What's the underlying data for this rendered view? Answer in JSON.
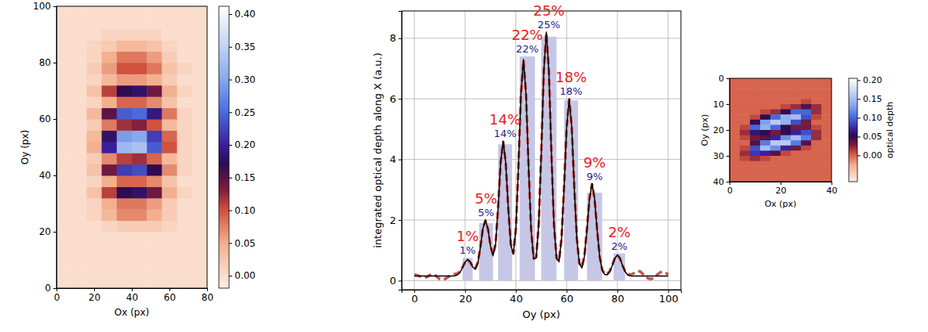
{
  "chart_data": [
    {
      "type": "heatmap",
      "xlabel": "Ox (px)",
      "ylabel": "Oy (px)",
      "xlim": [
        0,
        80
      ],
      "ylim": [
        0,
        100
      ],
      "xticks": [
        0,
        20,
        40,
        60,
        80
      ],
      "yticks": [
        0,
        20,
        40,
        60,
        80,
        100
      ],
      "x_edges": [
        0,
        8,
        16,
        24,
        32,
        40,
        48,
        56,
        64,
        72,
        80
      ],
      "y_edges": [
        0,
        4,
        8,
        12,
        16,
        20,
        24,
        28,
        32,
        36,
        40,
        44,
        48,
        52,
        56,
        60,
        64,
        68,
        72,
        76,
        80,
        84,
        88,
        92,
        96,
        100
      ],
      "cells": [
        [
          0,
          0,
          0,
          0,
          0,
          0,
          0,
          0,
          0,
          0
        ],
        [
          0,
          0,
          0,
          0,
          0,
          0,
          0,
          0,
          0,
          0
        ],
        [
          0,
          0,
          0,
          0,
          0,
          0,
          0,
          0,
          0,
          0
        ],
        [
          0,
          0,
          0,
          0,
          0,
          0,
          0,
          0,
          0,
          0
        ],
        [
          0,
          0,
          0,
          0,
          0,
          0,
          0,
          0,
          0,
          0
        ],
        [
          0,
          0,
          0,
          0.01,
          0.02,
          0.02,
          0.02,
          0.01,
          0,
          0
        ],
        [
          0,
          0,
          0.01,
          0.04,
          0.07,
          0.07,
          0.05,
          0.02,
          0,
          0
        ],
        [
          0,
          0,
          0.01,
          0.05,
          0.08,
          0.08,
          0.06,
          0.02,
          0,
          0
        ],
        [
          0,
          0,
          0.03,
          0.11,
          0.17,
          0.18,
          0.14,
          0.05,
          0.01,
          0
        ],
        [
          0,
          0,
          0.01,
          0.05,
          0.09,
          0.09,
          0.07,
          0.03,
          0,
          0
        ],
        [
          0,
          0,
          0.03,
          0.14,
          0.22,
          0.23,
          0.17,
          0.07,
          0.01,
          0
        ],
        [
          0,
          0,
          0.02,
          0.07,
          0.11,
          0.12,
          0.09,
          0.04,
          0.01,
          0
        ],
        [
          0,
          0,
          0.05,
          0.2,
          0.32,
          0.33,
          0.24,
          0.1,
          0.01,
          0
        ],
        [
          0,
          0,
          0.04,
          0.18,
          0.29,
          0.3,
          0.22,
          0.09,
          0.01,
          0
        ],
        [
          0,
          0,
          0.02,
          0.08,
          0.12,
          0.13,
          0.1,
          0.04,
          0.01,
          0
        ],
        [
          0,
          0,
          0.04,
          0.15,
          0.24,
          0.25,
          0.19,
          0.08,
          0.01,
          0
        ],
        [
          0,
          0,
          0.01,
          0.05,
          0.09,
          0.09,
          0.07,
          0.03,
          0,
          0
        ],
        [
          0,
          0,
          0.03,
          0.11,
          0.17,
          0.18,
          0.14,
          0.05,
          0.01,
          0
        ],
        [
          0,
          0,
          0.01,
          0.04,
          0.06,
          0.06,
          0.05,
          0.02,
          0,
          0
        ],
        [
          0,
          0,
          0.02,
          0.06,
          0.1,
          0.1,
          0.08,
          0.03,
          0.01,
          0
        ],
        [
          0,
          0,
          0.01,
          0.05,
          0.08,
          0.08,
          0.06,
          0.02,
          0,
          0
        ],
        [
          0,
          0,
          0.01,
          0.02,
          0.04,
          0.04,
          0.03,
          0.01,
          0,
          0
        ],
        [
          0,
          0,
          0,
          0.01,
          0.01,
          0.01,
          0.01,
          0,
          0,
          0
        ],
        [
          0,
          0,
          0,
          0,
          0,
          0,
          0,
          0,
          0,
          0
        ],
        [
          0,
          0,
          0,
          0,
          0,
          0,
          0,
          0,
          0,
          0
        ]
      ],
      "colorbar_range": [
        -0.019,
        0.412
      ],
      "colorbar_ticks": [
        {
          "value": 0,
          "label": "0.00"
        },
        {
          "value": 0.05,
          "label": "0.05"
        },
        {
          "value": 0.1,
          "label": "0.10"
        },
        {
          "value": 0.15,
          "label": "0.15"
        },
        {
          "value": 0.2,
          "label": "0.20"
        },
        {
          "value": 0.25,
          "label": "0.25"
        },
        {
          "value": 0.3,
          "label": "0.30"
        },
        {
          "value": 0.35,
          "label": "0.35"
        },
        {
          "value": 0.4,
          "label": "0.40"
        }
      ]
    },
    {
      "type": "bar",
      "xlabel": "Oy (px)",
      "ylabel": "integrated optical depth along X (a.u.)",
      "xlim": [
        -5,
        105
      ],
      "ylim": [
        -0.3,
        8.9
      ],
      "xticks": [
        0,
        20,
        40,
        60,
        80,
        100
      ],
      "yticks": [
        0,
        2,
        4,
        6,
        8
      ],
      "grid": true,
      "series": [
        {
          "type": "bar",
          "color": "#c6c7e7",
          "x0": [
            19,
            25.5,
            33,
            41.5,
            50,
            59,
            68,
            78.5
          ],
          "x1": [
            23,
            31,
            38.5,
            47.5,
            56,
            64.5,
            74,
            83
          ],
          "values": [
            0.75,
            1.9,
            4.5,
            7.4,
            8.05,
            5.95,
            2.9,
            0.9
          ]
        },
        {
          "type": "line",
          "color": "#c65450",
          "line_style": "dashed",
          "x": [
            0,
            1,
            2,
            3,
            4,
            5,
            6,
            7,
            8,
            9,
            10,
            11,
            12,
            13,
            14,
            15,
            16,
            17,
            18,
            19,
            20,
            21,
            22,
            23,
            24,
            25,
            26,
            27,
            28,
            29,
            30,
            31,
            32,
            33,
            34,
            35,
            36,
            37,
            38,
            39,
            40,
            41,
            42,
            43,
            44,
            45,
            46,
            47,
            48,
            49,
            50,
            51,
            52,
            53,
            54,
            55,
            56,
            57,
            58,
            59,
            60,
            61,
            62,
            63,
            64,
            65,
            66,
            67,
            68,
            69,
            70,
            71,
            72,
            73,
            74,
            75,
            76,
            77,
            78,
            79,
            80,
            81,
            82,
            83,
            84,
            85,
            86,
            87,
            88,
            89,
            90,
            91,
            92,
            93,
            94,
            95,
            96,
            97,
            98,
            99,
            100
          ],
          "values": [
            0.2,
            0.18,
            0.15,
            0.12,
            0.1,
            0.12,
            0.18,
            0.22,
            0.2,
            0.12,
            0.05,
            0.02,
            0.05,
            0.1,
            0.16,
            0.2,
            0.22,
            0.24,
            0.3,
            0.45,
            0.62,
            0.68,
            0.6,
            0.46,
            0.4,
            0.6,
            1.1,
            1.72,
            1.98,
            1.7,
            1.15,
            0.85,
            1.22,
            2.38,
            3.9,
            4.58,
            3.9,
            2.4,
            1.2,
            0.9,
            1.72,
            3.72,
            6.15,
            7.28,
            6.15,
            3.75,
            1.7,
            0.74,
            0.78,
            1.87,
            4.2,
            6.9,
            8.18,
            6.9,
            4.2,
            1.87,
            0.76,
            0.65,
            1.42,
            3.1,
            5.05,
            5.98,
            5.05,
            3.1,
            1.4,
            0.58,
            0.45,
            0.82,
            1.7,
            2.72,
            3.18,
            2.7,
            1.68,
            0.8,
            0.36,
            0.22,
            0.22,
            0.32,
            0.52,
            0.75,
            0.84,
            0.73,
            0.5,
            0.32,
            0.22,
            0.2,
            0.22,
            0.28,
            0.32,
            0.3,
            0.22,
            0.12,
            0.08,
            0.05,
            0.08,
            0.15,
            0.22,
            0.28,
            0.3,
            0.26,
            0.2
          ]
        },
        {
          "type": "line",
          "color": "#000000",
          "line_style": "solid",
          "x": [
            0,
            1,
            2,
            3,
            4,
            5,
            6,
            7,
            8,
            9,
            10,
            11,
            12,
            13,
            14,
            15,
            16,
            17,
            18,
            19,
            20,
            21,
            22,
            23,
            24,
            25,
            26,
            27,
            28,
            29,
            30,
            31,
            32,
            33,
            34,
            35,
            36,
            37,
            38,
            39,
            40,
            41,
            42,
            43,
            44,
            45,
            46,
            47,
            48,
            49,
            50,
            51,
            52,
            53,
            54,
            55,
            56,
            57,
            58,
            59,
            60,
            61,
            62,
            63,
            64,
            65,
            66,
            67,
            68,
            69,
            70,
            71,
            72,
            73,
            74,
            75,
            76,
            77,
            78,
            79,
            80,
            81,
            82,
            83,
            84,
            85,
            86,
            87,
            88,
            89,
            90,
            91,
            92,
            93,
            94,
            95,
            96,
            97,
            98,
            99,
            100
          ],
          "values": [
            0.15,
            0.15,
            0.15,
            0.15,
            0.15,
            0.15,
            0.15,
            0.15,
            0.15,
            0.15,
            0.15,
            0.15,
            0.15,
            0.15,
            0.15,
            0.15,
            0.16,
            0.19,
            0.27,
            0.43,
            0.61,
            0.7,
            0.62,
            0.45,
            0.38,
            0.57,
            1.08,
            1.71,
            2.0,
            1.71,
            1.13,
            0.82,
            1.2,
            2.4,
            3.89,
            4.6,
            3.89,
            2.39,
            1.18,
            0.88,
            1.71,
            3.73,
            6.16,
            7.3,
            6.16,
            3.74,
            1.67,
            0.71,
            0.75,
            1.85,
            4.18,
            6.91,
            8.2,
            6.91,
            4.19,
            1.85,
            0.73,
            0.62,
            1.4,
            3.08,
            5.06,
            6.0,
            5.07,
            3.08,
            1.39,
            0.56,
            0.42,
            0.8,
            1.68,
            2.71,
            3.2,
            2.71,
            1.68,
            0.79,
            0.34,
            0.2,
            0.2,
            0.3,
            0.5,
            0.74,
            0.85,
            0.74,
            0.5,
            0.3,
            0.19,
            0.16,
            0.15,
            0.15,
            0.15,
            0.15,
            0.15,
            0.15,
            0.15,
            0.15,
            0.15,
            0.15,
            0.15,
            0.15,
            0.15,
            0.15,
            0.15
          ]
        }
      ],
      "annotations": [
        {
          "color": "#e8231f",
          "values": [
            1,
            5,
            14,
            22,
            25,
            18,
            9,
            2
          ],
          "value_labels": [
            "1%",
            "5%",
            "14%",
            "22%",
            "25%",
            "18%",
            "9%",
            "2%"
          ]
        },
        {
          "color": "#1c1c8c",
          "values": [
            1,
            5,
            14,
            22,
            25,
            18,
            9,
            2
          ],
          "value_labels": [
            "1%",
            "5%",
            "14%",
            "22%",
            "25%",
            "18%",
            "9%",
            "2%"
          ]
        }
      ]
    },
    {
      "type": "heatmap",
      "xlabel": "Ox (px)",
      "ylabel": "Oy (px)",
      "colorbar_label": "optical depth",
      "xlim": [
        0,
        40
      ],
      "ylim": [
        40,
        0
      ],
      "xticks": [
        0,
        20,
        40
      ],
      "yticks": [
        0,
        10,
        20,
        30,
        40
      ],
      "x_edges": [
        0,
        4,
        8,
        12,
        16,
        20,
        24,
        28,
        32,
        36,
        40
      ],
      "y_edges": [
        0,
        2,
        4,
        6,
        8,
        10,
        12,
        14,
        16,
        18,
        20,
        22,
        24,
        26,
        28,
        30,
        32,
        34,
        36,
        38,
        40
      ],
      "cells": [
        [
          0,
          0,
          0,
          0,
          0,
          0,
          0,
          0,
          0,
          0
        ],
        [
          0,
          0,
          0,
          0,
          0,
          0,
          0,
          0,
          0,
          0
        ],
        [
          0,
          0,
          0,
          0,
          0,
          0,
          0,
          0,
          0,
          0
        ],
        [
          0,
          0,
          0,
          0,
          0,
          0,
          0,
          0,
          0,
          0
        ],
        [
          0,
          0,
          0,
          0,
          0,
          0,
          0,
          0.01,
          0,
          0
        ],
        [
          0,
          0,
          0,
          0,
          0,
          0.01,
          0.02,
          0.04,
          0.02,
          0
        ],
        [
          0,
          0,
          0,
          0.01,
          0.02,
          0.05,
          0.1,
          0.1,
          0.02,
          0
        ],
        [
          0,
          0,
          0.01,
          0.05,
          0.1,
          0.14,
          0.15,
          0.09,
          0.01,
          0
        ],
        [
          0,
          0,
          0.05,
          0.13,
          0.16,
          0.14,
          0.09,
          0.03,
          0,
          0
        ],
        [
          0,
          0.01,
          0.1,
          0.14,
          0.1,
          0.05,
          0.03,
          0.03,
          0.01,
          0
        ],
        [
          0,
          0.02,
          0.06,
          0.05,
          0.03,
          0.05,
          0.07,
          0.09,
          0.02,
          0
        ],
        [
          0,
          0.01,
          0.03,
          0.04,
          0.07,
          0.12,
          0.15,
          0.11,
          0.02,
          0
        ],
        [
          0,
          0,
          0.04,
          0.11,
          0.16,
          0.16,
          0.11,
          0.04,
          0,
          0
        ],
        [
          0,
          0.01,
          0.09,
          0.15,
          0.12,
          0.07,
          0.03,
          0.01,
          0,
          0
        ],
        [
          0,
          0.02,
          0.08,
          0.07,
          0.04,
          0.01,
          0,
          0,
          0,
          0
        ],
        [
          0,
          0.01,
          0.02,
          0.01,
          0,
          0,
          0,
          0,
          0,
          0
        ],
        [
          0,
          0,
          0,
          0,
          0,
          0,
          0,
          0,
          0,
          0
        ],
        [
          0,
          0,
          0,
          0,
          0,
          0,
          0,
          0,
          0,
          0
        ],
        [
          0,
          0,
          0,
          0,
          0,
          0,
          0,
          0,
          0,
          0
        ],
        [
          0,
          0,
          0,
          0,
          0,
          0,
          0,
          0,
          0,
          0
        ]
      ],
      "colorbar_range": [
        -0.07,
        0.205
      ],
      "colorbar_ticks": [
        {
          "value": 0,
          "label": "0.00"
        },
        {
          "value": 0.05,
          "label": "0.05"
        },
        {
          "value": 0.1,
          "label": "0.10"
        },
        {
          "value": 0.15,
          "label": "0.15"
        },
        {
          "value": 0.2,
          "label": "0.20"
        }
      ]
    }
  ]
}
